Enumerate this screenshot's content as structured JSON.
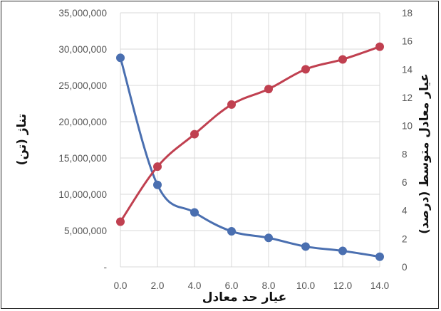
{
  "chart_data": {
    "type": "line",
    "xlabel": "عیار حد معادل",
    "ylabel_left": "تناژ (تن)",
    "ylabel_right": "عیار معادل متوسط (درصد)",
    "x": [
      0.0,
      2.0,
      4.0,
      6.0,
      8.0,
      10.0,
      12.0,
      14.0
    ],
    "x_tick_labels": [
      "0.0",
      "2.0",
      "4.0",
      "6.0",
      "8.0",
      "10.0",
      "12.0",
      "14.0"
    ],
    "ylim_left": [
      0,
      35000000
    ],
    "ylim_right": [
      0,
      18
    ],
    "y_left_tick_labels": [
      "-",
      "5,000,000",
      "10,000,000",
      "15,000,000",
      "20,000,000",
      "25,000,000",
      "30,000,000",
      "35,000,000"
    ],
    "y_right_tick_labels": [
      "0",
      "2",
      "4",
      "6",
      "8",
      "10",
      "12",
      "14",
      "16",
      "18"
    ],
    "grid": true,
    "series": [
      {
        "axis": "left",
        "color": "#4a6fb0",
        "values": [
          28800000,
          11300000,
          7500000,
          4900000,
          4000000,
          2800000,
          2200000,
          1400000
        ]
      },
      {
        "axis": "right",
        "color": "#c04050",
        "values": [
          3.2,
          7.1,
          9.4,
          11.5,
          12.6,
          14.0,
          14.7,
          15.6
        ]
      }
    ]
  }
}
